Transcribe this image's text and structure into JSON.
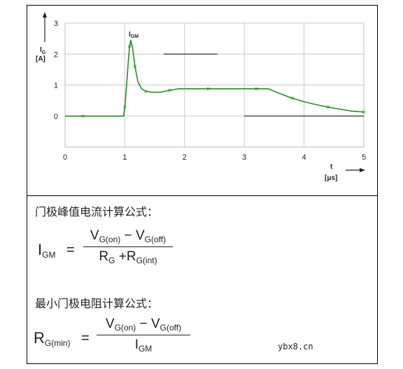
{
  "chart_data": {
    "type": "line",
    "xlabel": "t",
    "xunit": "[μs]",
    "ylabel": "I",
    "ylabel_sub": "G",
    "yunit": "[A]",
    "xlim": [
      0,
      5
    ],
    "ylim": [
      0,
      3
    ],
    "x_ticks": [
      "0",
      "1",
      "2",
      "3",
      "4",
      "5"
    ],
    "y_ticks": [
      "0",
      "1",
      "2",
      "3"
    ],
    "grid": true,
    "annotation": {
      "text": "I",
      "sub": "GM",
      "x": 1.1,
      "y": 2.45
    },
    "series": [
      {
        "color": "#2a8a2a",
        "x": [
          0,
          0.3,
          0.8,
          0.98,
          1.0,
          1.03,
          1.06,
          1.08,
          1.1,
          1.13,
          1.17,
          1.22,
          1.28,
          1.35,
          1.45,
          1.6,
          1.75,
          1.9,
          2.1,
          2.4,
          2.7,
          3.0,
          3.2,
          3.4,
          3.6,
          3.8,
          4.0,
          4.2,
          4.4,
          4.6,
          4.8,
          5.0
        ],
        "y": [
          0,
          0,
          0,
          0,
          0.3,
          1.0,
          1.8,
          2.25,
          2.45,
          2.2,
          1.6,
          1.1,
          0.88,
          0.8,
          0.77,
          0.77,
          0.83,
          0.88,
          0.88,
          0.88,
          0.88,
          0.88,
          0.88,
          0.88,
          0.72,
          0.58,
          0.46,
          0.37,
          0.29,
          0.22,
          0.16,
          0.13
        ]
      }
    ],
    "dark_segments": [
      {
        "x": [
          1.65,
          2.55
        ],
        "y": 2.0
      },
      {
        "x": [
          3.0,
          5.0
        ],
        "y": 0
      }
    ]
  },
  "formulas": {
    "heading1": "门极峰值电流计算公式：",
    "f1": {
      "lhs": "I",
      "lhs_sub": "GM",
      "eq": "=",
      "num": {
        "a": "V",
        "a_sub": "G(on)",
        "op": " − ",
        "b": "V",
        "b_sub": "G(off)"
      },
      "den": {
        "a": "R",
        "a_sub": "G",
        "op": " +",
        "b": "R",
        "b_sub": "G(int)"
      }
    },
    "heading2": "最小门极电阻计算公式：",
    "f2": {
      "lhs": "R",
      "lhs_sub": "G(min)",
      "eq": "=",
      "num": {
        "a": "V",
        "a_sub": "G(on)",
        "op": " − ",
        "b": "V",
        "b_sub": "G(off)"
      },
      "den": {
        "a": "I",
        "a_sub": "GM"
      }
    }
  },
  "watermark": "ybx8.cn"
}
